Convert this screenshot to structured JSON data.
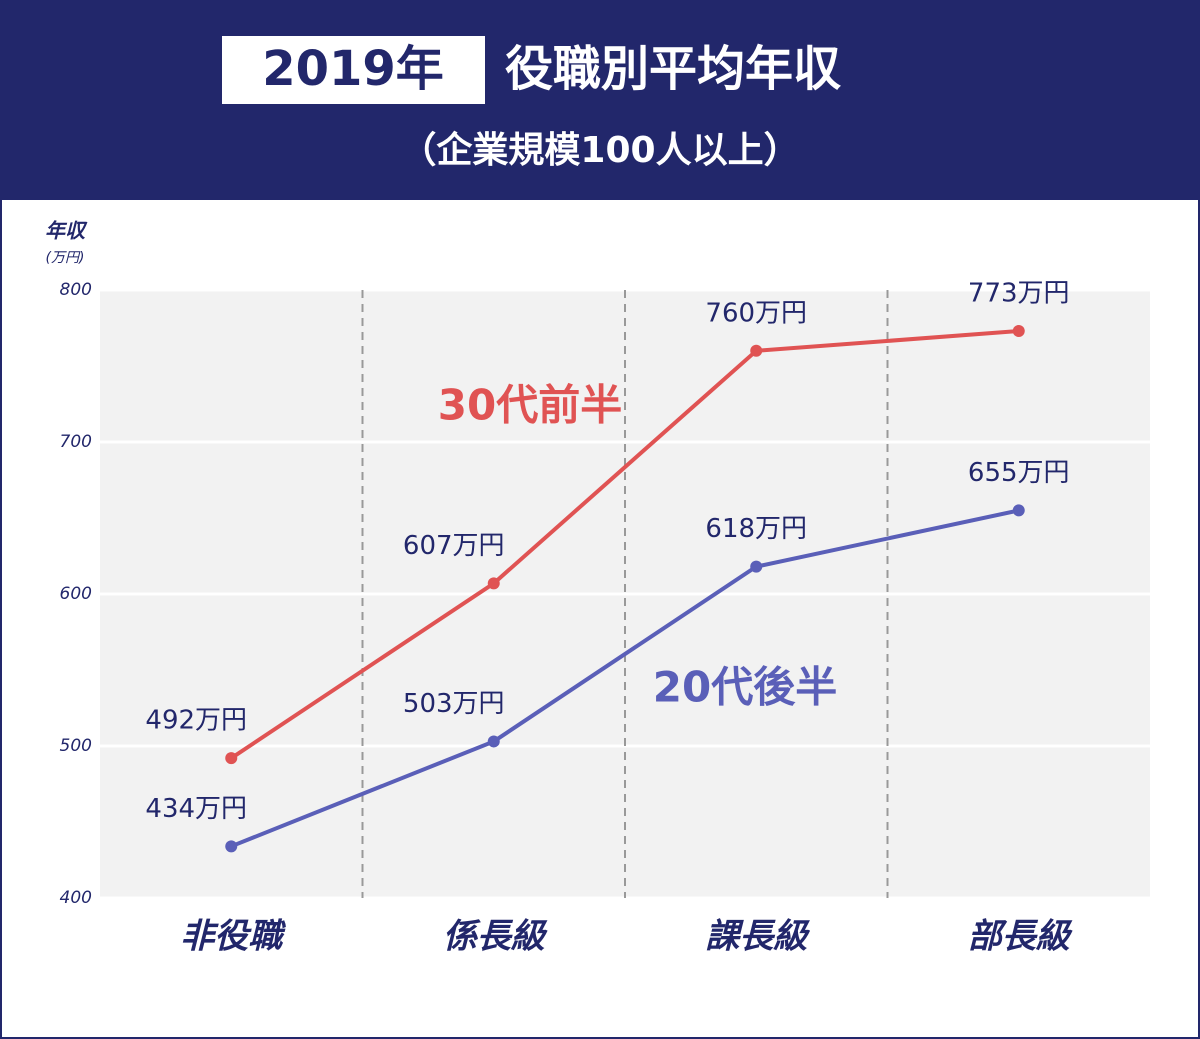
{
  "chart_data": {
    "type": "line",
    "title_highlight": "2019年",
    "title": "役職別平均年収",
    "subtitle": "（企業規模100人以上）",
    "y_axis_label": "年収",
    "y_axis_unit": "(万円)",
    "categories": [
      "非役職",
      "係長級",
      "課長級",
      "部長級"
    ],
    "series": [
      {
        "name": "30代前半",
        "color": "#e05353",
        "values": [
          492,
          607,
          760,
          773
        ],
        "value_labels": [
          "492万円",
          "607万円",
          "760万円",
          "773万円"
        ]
      },
      {
        "name": "20代後半",
        "color": "#5a5fb8",
        "values": [
          434,
          503,
          618,
          655
        ],
        "value_labels": [
          "434万円",
          "503万円",
          "618万円",
          "655万円"
        ]
      }
    ],
    "ylim": [
      400,
      800
    ],
    "yticks": [
      400,
      500,
      600,
      700,
      800
    ],
    "grid": true
  }
}
